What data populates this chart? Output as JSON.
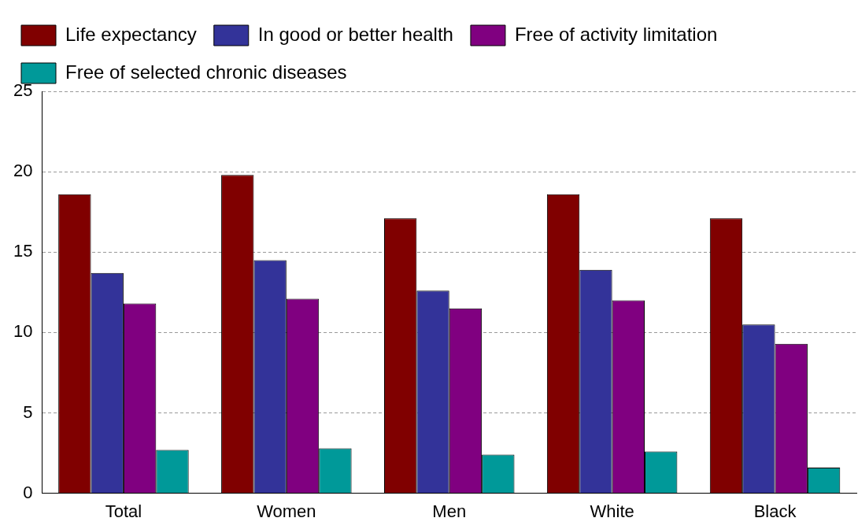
{
  "chart_data": {
    "type": "bar",
    "categories": [
      "Total",
      "Women",
      "Men",
      "White",
      "Black"
    ],
    "series": [
      {
        "name": "Life expectancy",
        "color": "#800000",
        "values": [
          18.6,
          19.8,
          17.1,
          18.6,
          17.1
        ]
      },
      {
        "name": "In good or better health",
        "color": "#333399",
        "values": [
          13.7,
          14.5,
          12.6,
          13.9,
          10.5
        ]
      },
      {
        "name": "Free of activity limitation",
        "color": "#800080",
        "values": [
          11.8,
          12.1,
          11.5,
          12.0,
          9.3
        ]
      },
      {
        "name": "Free of selected chronic diseases",
        "color": "#009999",
        "values": [
          2.7,
          2.8,
          2.4,
          2.6,
          1.6
        ]
      }
    ],
    "ylim": [
      0,
      25
    ],
    "yticks": [
      0,
      5,
      10,
      15,
      20,
      25
    ],
    "grid": "y",
    "legend": "top"
  }
}
